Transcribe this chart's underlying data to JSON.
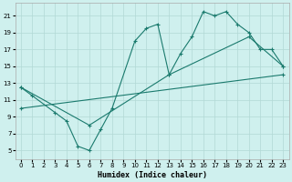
{
  "xlabel": "Humidex (Indice chaleur)",
  "background_color": "#cff0ee",
  "grid_color": "#b2d8d5",
  "line_color": "#1a7a6d",
  "xlim": [
    -0.5,
    23.5
  ],
  "ylim": [
    4,
    22.5
  ],
  "xticks": [
    0,
    1,
    2,
    3,
    4,
    5,
    6,
    7,
    8,
    9,
    10,
    11,
    12,
    13,
    14,
    15,
    16,
    17,
    18,
    19,
    20,
    21,
    22,
    23
  ],
  "yticks": [
    5,
    7,
    9,
    11,
    13,
    15,
    17,
    19,
    21
  ],
  "line1_x": [
    0,
    1,
    3,
    4,
    5,
    6,
    7,
    8,
    10,
    11,
    12,
    13,
    14,
    15,
    16,
    17,
    18,
    19,
    20,
    21,
    22,
    23
  ],
  "line1_y": [
    12.5,
    11.5,
    9.5,
    8.5,
    5.5,
    5.0,
    7.5,
    10.0,
    18.0,
    19.5,
    20.0,
    14.0,
    16.5,
    18.5,
    21.5,
    21.0,
    21.5,
    20.0,
    19.0,
    17.0,
    17.0,
    15.0
  ],
  "line2_x": [
    0,
    6,
    13,
    20,
    23
  ],
  "line2_y": [
    12.5,
    8.0,
    14.0,
    18.5,
    15.0
  ],
  "line3_x": [
    0,
    23
  ],
  "line3_y": [
    10.0,
    14.0
  ]
}
